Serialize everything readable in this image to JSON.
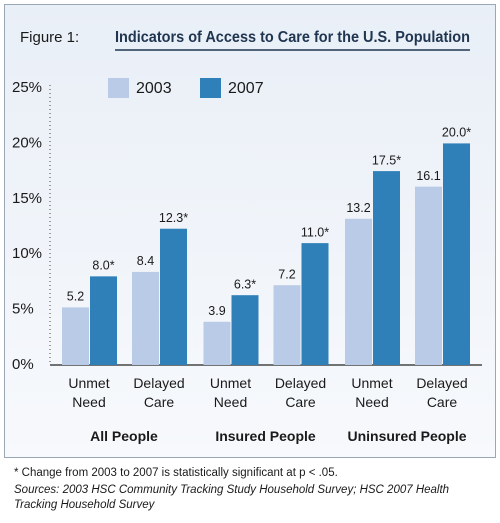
{
  "chart_data": {
    "type": "bar",
    "figure_label": "Figure 1:",
    "title": "Indicators of Access to Care for the U.S. Population",
    "categories": [
      "Unmet Need",
      "Delayed Care",
      "Unmet Need",
      "Delayed Care",
      "Unmet Need",
      "Delayed Care"
    ],
    "groups": [
      "All People",
      "Insured People",
      "Uninsured People"
    ],
    "series": [
      {
        "name": "2003",
        "color": "#b9cbe6",
        "values": [
          5.2,
          8.4,
          3.9,
          7.2,
          13.2,
          16.1
        ]
      },
      {
        "name": "2007",
        "color": "#2f80b9",
        "values": [
          8.0,
          12.3,
          6.3,
          11.0,
          17.5,
          20.0
        ],
        "value_labels": [
          "8.0*",
          "12.3*",
          "6.3*",
          "11.0*",
          "17.5*",
          "20.0*"
        ]
      }
    ],
    "ylim": [
      0,
      25
    ],
    "yticks": [
      {
        "value": 0,
        "label": "0%"
      },
      {
        "value": 5,
        "label": "5%"
      },
      {
        "value": 10,
        "label": "10%"
      },
      {
        "value": 15,
        "label": "15%"
      },
      {
        "value": 20,
        "label": "20%"
      },
      {
        "value": 25,
        "label": "25%"
      }
    ],
    "notes": [
      "* Change from 2003 to 2007 is statistically significant at p < .05.",
      "Sources: 2003 HSC Community Tracking Study Household Survey; HSC 2007 Health Tracking Household Survey"
    ]
  }
}
